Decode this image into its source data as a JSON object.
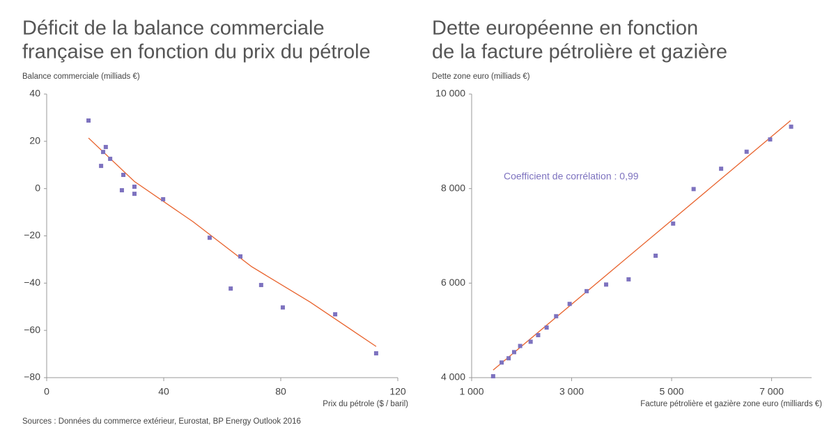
{
  "chart_data": [
    {
      "type": "scatter",
      "title": [
        "Déficit de la balance commerciale",
        "française en fonction du prix du pétrole"
      ],
      "y_label": "Balance commerciale (milliads €)",
      "x_label": "Prix du pétrole ($ / baril)",
      "xlim": [
        0,
        120
      ],
      "xticks": [
        0,
        40,
        80,
        120
      ],
      "ylim": [
        -80,
        40
      ],
      "yticks": [
        {
          "value": -80,
          "label": "−80"
        },
        {
          "value": -60,
          "label": "−60"
        },
        {
          "value": -40,
          "label": "−40"
        },
        {
          "value": -20,
          "label": "−20"
        },
        0,
        20,
        40
      ],
      "points": {
        "color": "#7d72bf",
        "x": [
          14.3,
          19.3,
          20.2,
          18.6,
          21.7,
          26.2,
          25.7,
          30,
          30,
          39.8,
          55.7,
          66.2,
          62.9,
          73.3,
          80.7,
          98.6,
          112.6
        ],
        "y": [
          28.8,
          15.5,
          17.6,
          9.6,
          12.6,
          5.8,
          -0.7,
          0.8,
          -2.2,
          -4.5,
          -20.8,
          -28.7,
          -42.3,
          -40.8,
          -50.3,
          -53.2,
          -69.7
        ]
      },
      "trend": {
        "color": "#e8622c",
        "x": [
          14.3,
          30,
          50,
          70,
          90,
          112.6
        ],
        "y": [
          21.4,
          3,
          -14,
          -33,
          -48,
          -66.8
        ]
      }
    },
    {
      "type": "scatter",
      "title": [
        "Dette européenne en fonction",
        "de la facture pétrolière et gazière"
      ],
      "y_label": "Dette zone euro (milliads €)",
      "x_label": "Facture pétrolière et gazière zone euro (milliards €)",
      "annotation": "Coefficient de corrélation : 0,99",
      "xlim": [
        1000,
        7800
      ],
      "xticks": [
        {
          "value": 1000,
          "label": "1 000"
        },
        {
          "value": 3000,
          "label": "3 000"
        },
        {
          "value": 5000,
          "label": "5 000"
        },
        {
          "value": 7000,
          "label": "7 000"
        }
      ],
      "ylim": [
        4000,
        10000
      ],
      "yticks": [
        {
          "value": 4000,
          "label": "4 000"
        },
        {
          "value": 6000,
          "label": "6 000"
        },
        {
          "value": 8000,
          "label": "8 000"
        },
        {
          "value": 10000,
          "label": "10 000"
        }
      ],
      "points": {
        "color": "#7d72bf",
        "x": [
          1430,
          1600,
          1740,
          1850,
          1970,
          2180,
          2330,
          2500,
          2690,
          2960,
          3300,
          3690,
          4140,
          4680,
          5030,
          5440,
          5990,
          6500,
          6970,
          7390
        ],
        "y": [
          4030,
          4320,
          4410,
          4540,
          4670,
          4760,
          4900,
          5060,
          5300,
          5560,
          5830,
          5970,
          6080,
          6580,
          7260,
          7990,
          8420,
          8780,
          9040,
          9310
        ]
      },
      "trend": {
        "color": "#e8622c",
        "x": [
          1430,
          7380
        ],
        "y": [
          4160,
          9440
        ]
      }
    }
  ],
  "sources": "Sources : Données du commerce extérieur, Eurostat, BP Energy Outlook 2016"
}
